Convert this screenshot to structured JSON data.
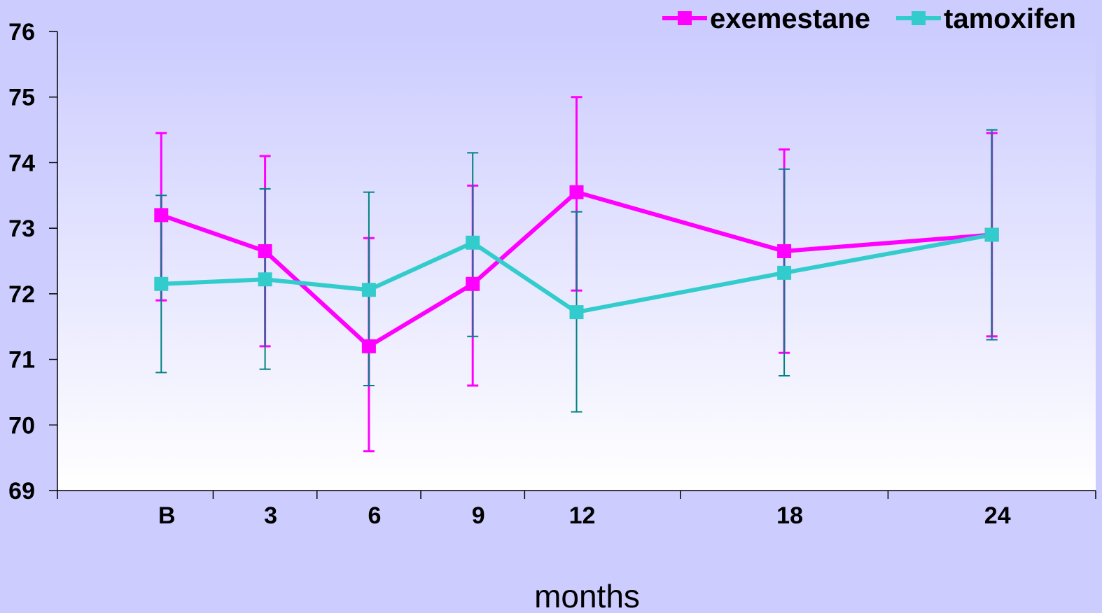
{
  "chart_data": {
    "type": "line",
    "title": "",
    "xlabel": "months",
    "ylabel": "",
    "ylim": [
      69,
      76
    ],
    "yticks": [
      "69",
      "70",
      "71",
      "72",
      "73",
      "74",
      "75",
      "76"
    ],
    "categories": [
      "B",
      "3",
      "6",
      "9",
      "12",
      "18",
      "24"
    ],
    "x": [
      0,
      3,
      6,
      9,
      12,
      18,
      24
    ],
    "xlim": [
      -3,
      27
    ],
    "grid": false,
    "legend": "top-right",
    "series": [
      {
        "name": "exemestane",
        "color": "#ff00ff",
        "marker": "square",
        "values": [
          73.2,
          72.65,
          71.2,
          72.15,
          73.55,
          72.65,
          72.9
        ],
        "error_upper": [
          74.45,
          74.1,
          72.85,
          73.65,
          75.0,
          74.2,
          74.45
        ],
        "error_lower": [
          71.9,
          71.2,
          69.6,
          70.6,
          72.05,
          71.1,
          71.35
        ]
      },
      {
        "name": "tamoxifen",
        "color": "#33cccc",
        "error_color": "#008080",
        "marker": "square",
        "values": [
          72.15,
          72.22,
          72.06,
          72.78,
          71.72,
          72.32,
          72.9
        ],
        "error_upper": [
          73.5,
          73.6,
          73.55,
          74.15,
          73.25,
          73.9,
          74.5
        ],
        "error_lower": [
          70.8,
          70.85,
          70.6,
          71.35,
          70.2,
          70.75,
          71.3
        ]
      }
    ]
  }
}
